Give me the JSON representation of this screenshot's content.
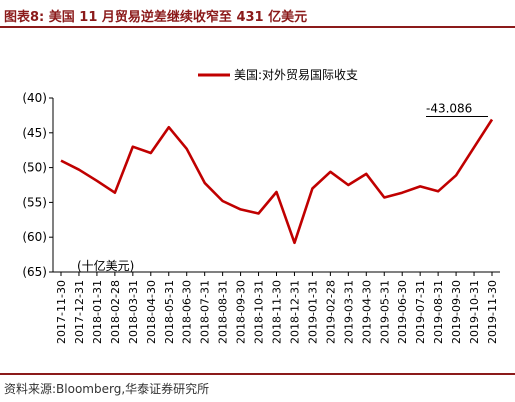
{
  "title": "图表8:   美国 11 月贸易逆差继续收窄至 431 亿美元",
  "source": "资料来源:Bloomberg,华泰证券研究所",
  "chart_data": {
    "type": "line",
    "unit_note": "(十亿美元)",
    "callout_label": "-43.086",
    "color": "#c00000",
    "y_ticks": [
      "(40)",
      "(45)",
      "(50)",
      "(55)",
      "(60)",
      "(65)"
    ],
    "ylim": [
      -65,
      -40
    ],
    "legend": "top-center",
    "grid": false,
    "x": [
      "2017-11-30",
      "2017-12-31",
      "2018-01-31",
      "2018-02-28",
      "2018-03-31",
      "2018-04-30",
      "2018-05-31",
      "2018-06-30",
      "2018-07-31",
      "2018-08-31",
      "2018-09-30",
      "2018-10-31",
      "2018-11-30",
      "2018-12-31",
      "2019-01-31",
      "2019-02-28",
      "2019-03-31",
      "2019-04-30",
      "2019-05-31",
      "2019-06-30",
      "2019-07-31",
      "2019-08-31",
      "2019-09-30",
      "2019-10-31",
      "2019-11-30"
    ],
    "series": [
      {
        "name": "美国:对外贸易国际收支",
        "values": [
          -49.0,
          -50.3,
          -51.9,
          -53.6,
          -47.0,
          -47.9,
          -44.2,
          -47.3,
          -52.2,
          -54.8,
          -56.0,
          -56.6,
          -53.5,
          -60.8,
          -53.0,
          -50.6,
          -52.5,
          -50.9,
          -54.3,
          -53.6,
          -52.7,
          -53.4,
          -51.1,
          -47.1,
          -43.086
        ]
      }
    ]
  }
}
